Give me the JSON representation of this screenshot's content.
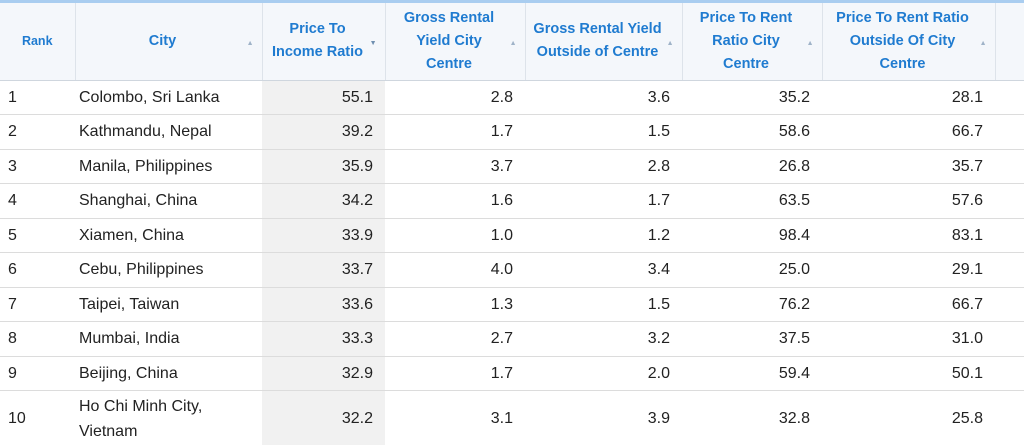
{
  "header": {
    "columns": [
      "Rank",
      "City",
      "Price To Income Ratio",
      "Gross Rental Yield City Centre",
      "Gross Rental Yield Outside of Centre",
      "Price To Rent Ratio City Centre",
      "Price To Rent Ratio Outside Of City Centre"
    ]
  },
  "table": {
    "rows": [
      [
        "1",
        "Colombo, Sri Lanka",
        "55.1",
        "2.8",
        "3.6",
        "35.2",
        "28.1"
      ],
      [
        "2",
        "Kathmandu, Nepal",
        "39.2",
        "1.7",
        "1.5",
        "58.6",
        "66.7"
      ],
      [
        "3",
        "Manila, Philippines",
        "35.9",
        "3.7",
        "2.8",
        "26.8",
        "35.7"
      ],
      [
        "4",
        "Shanghai, China",
        "34.2",
        "1.6",
        "1.7",
        "63.5",
        "57.6"
      ],
      [
        "5",
        "Xiamen, China",
        "33.9",
        "1.0",
        "1.2",
        "98.4",
        "83.1"
      ],
      [
        "6",
        "Cebu, Philippines",
        "33.7",
        "4.0",
        "3.4",
        "25.0",
        "29.1"
      ],
      [
        "7",
        "Taipei, Taiwan",
        "33.6",
        "1.3",
        "1.5",
        "76.2",
        "66.7"
      ],
      [
        "8",
        "Mumbai, India",
        "33.3",
        "2.7",
        "3.2",
        "37.5",
        "31.0"
      ],
      [
        "9",
        "Beijing, China",
        "32.9",
        "1.7",
        "2.0",
        "59.4",
        "50.1"
      ],
      [
        "10",
        "Ho Chi Minh City, Vietnam",
        "32.2",
        "3.1",
        "3.9",
        "32.8",
        "25.8"
      ]
    ]
  }
}
